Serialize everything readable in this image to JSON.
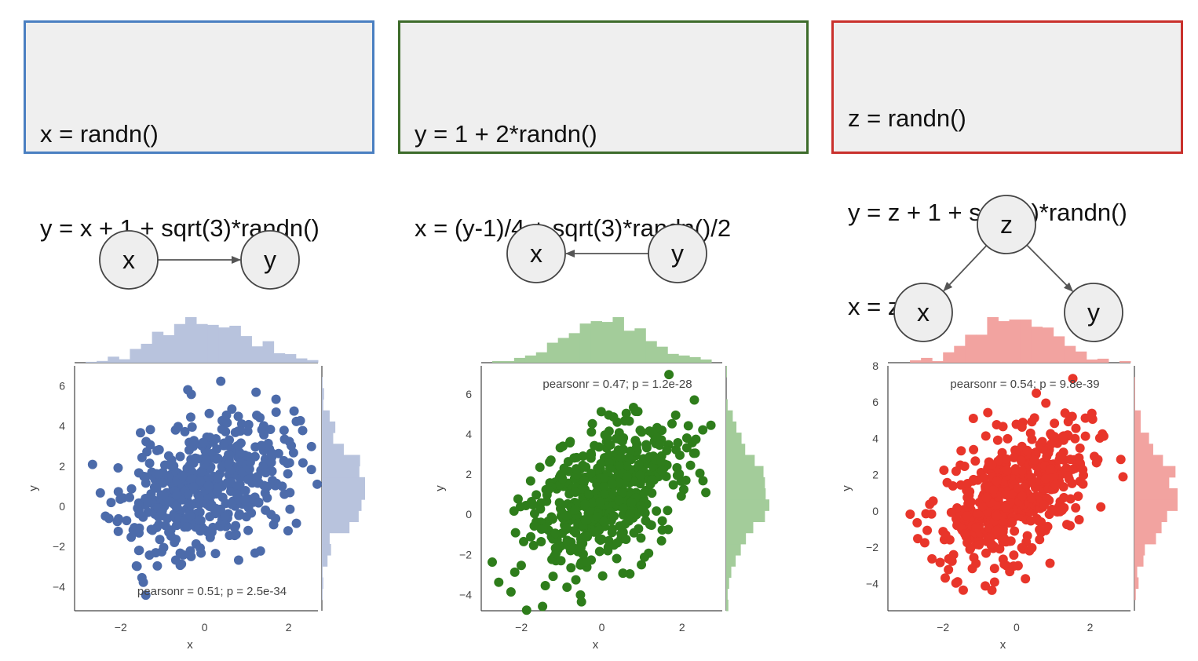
{
  "boxes": [
    {
      "lines": [
        "x = randn()",
        "y = x + 1 + sqrt(3)*randn()"
      ],
      "color": "#4a7fc1"
    },
    {
      "lines": [
        "y = 1 + 2*randn()",
        "x = (y-1)/4 + sqrt(3)*randn()/2"
      ],
      "color": "#3d6b2a"
    },
    {
      "lines": [
        "z = randn()",
        "y = z + 1 + sqrt(3)*randn()",
        "x = z"
      ],
      "color": "#c9302c"
    }
  ],
  "diagrams": [
    {
      "nodes": [
        "x",
        "y"
      ],
      "edges": [
        [
          "x",
          "y"
        ]
      ]
    },
    {
      "nodes": [
        "x",
        "y"
      ],
      "edges": [
        [
          "y",
          "x"
        ]
      ]
    },
    {
      "nodes": [
        "z",
        "x",
        "y"
      ],
      "edges": [
        [
          "z",
          "x"
        ],
        [
          "z",
          "y"
        ]
      ]
    }
  ],
  "chart_data": [
    {
      "type": "scatter",
      "xlabel": "x",
      "ylabel": "y",
      "xlim": [
        -3.1,
        2.7
      ],
      "ylim": [
        -5.2,
        7.0
      ],
      "xticks": [
        -2,
        0,
        2
      ],
      "yticks": [
        -4,
        -2,
        0,
        2,
        4,
        6
      ],
      "annotation": "pearsonr = 0.51; p = 2.5e-34",
      "annotation_position": "bottom",
      "color": "#4c6baa",
      "hist_color": "#b8c3dd",
      "n_points": 500,
      "slope": 0.62,
      "intercept": 1.0,
      "x_sd": 1.0,
      "resid_sd": 1.6,
      "seed": 11
    },
    {
      "type": "scatter",
      "xlabel": "x",
      "ylabel": "y",
      "xlim": [
        -3.0,
        3.0
      ],
      "ylim": [
        -4.8,
        7.4
      ],
      "xticks": [
        -2,
        0,
        2
      ],
      "yticks": [
        -4,
        -2,
        0,
        2,
        4,
        6
      ],
      "annotation": "pearsonr = 0.47; p = 1.2e-28",
      "annotation_position": "top",
      "color": "#2e7d1b",
      "hist_color": "#a3cc9a",
      "n_points": 500,
      "slope": 0.9,
      "intercept": 0.8,
      "x_sd": 0.95,
      "resid_sd": 1.7,
      "seed": 23
    },
    {
      "type": "scatter",
      "xlabel": "x",
      "ylabel": "y",
      "xlim": [
        -3.5,
        3.1
      ],
      "ylim": [
        -5.5,
        8.0
      ],
      "xticks": [
        -2,
        0,
        2
      ],
      "yticks": [
        -4,
        -2,
        0,
        2,
        4,
        6,
        8
      ],
      "annotation": "pearsonr = 0.54; p = 9.8e-39",
      "annotation_position": "top",
      "color": "#e8352a",
      "hist_color": "#f2a3a0",
      "n_points": 500,
      "slope": 1.0,
      "intercept": 1.0,
      "x_sd": 1.0,
      "resid_sd": 1.7,
      "seed": 37
    }
  ]
}
